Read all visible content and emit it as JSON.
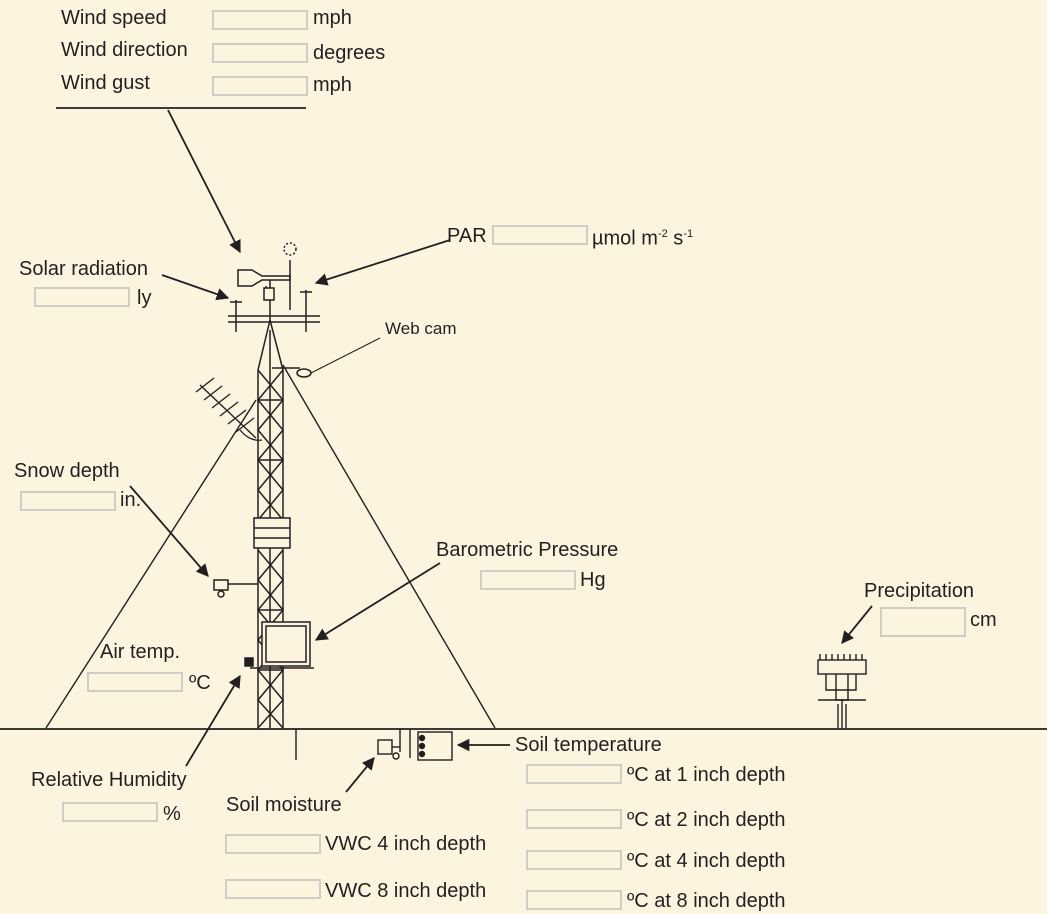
{
  "wind": {
    "speed": {
      "label": "Wind speed",
      "unit": "mph",
      "value": ""
    },
    "direction": {
      "label": "Wind direction",
      "unit": "degrees",
      "value": ""
    },
    "gust": {
      "label": "Wind gust",
      "unit": "mph",
      "value": ""
    }
  },
  "par": {
    "label": "PAR",
    "unit": "µmol m",
    "sup1": "-2",
    "mid": " s",
    "sup2": "-1",
    "value": ""
  },
  "solar": {
    "label": "Solar radiation",
    "unit": "ly",
    "value": ""
  },
  "webcam": {
    "label": "Web cam"
  },
  "snow": {
    "label": "Snow depth",
    "unit": "in.",
    "value": ""
  },
  "baro": {
    "label": "Barometric Pressure",
    "unit": "Hg",
    "value": ""
  },
  "precip": {
    "label": "Precipitation",
    "unit": "cm",
    "value": ""
  },
  "airtemp": {
    "label": "Air temp.",
    "unit": "ºC",
    "value": ""
  },
  "humidity": {
    "label": "Relative Humidity",
    "unit": "%",
    "value": ""
  },
  "soilmoist": {
    "label": "Soil moisture",
    "d4": {
      "unit": "VWC 4 inch depth",
      "value": ""
    },
    "d8": {
      "unit": "VWC 8 inch depth",
      "value": ""
    }
  },
  "soiltemp": {
    "label": "Soil temperature",
    "d1": {
      "unit": "ºC at 1 inch depth",
      "value": ""
    },
    "d2": {
      "unit": "ºC at 2 inch depth",
      "value": ""
    },
    "d4": {
      "unit": "ºC at 4 inch depth",
      "value": ""
    },
    "d8": {
      "unit": "ºC at 8 inch depth",
      "value": ""
    }
  }
}
